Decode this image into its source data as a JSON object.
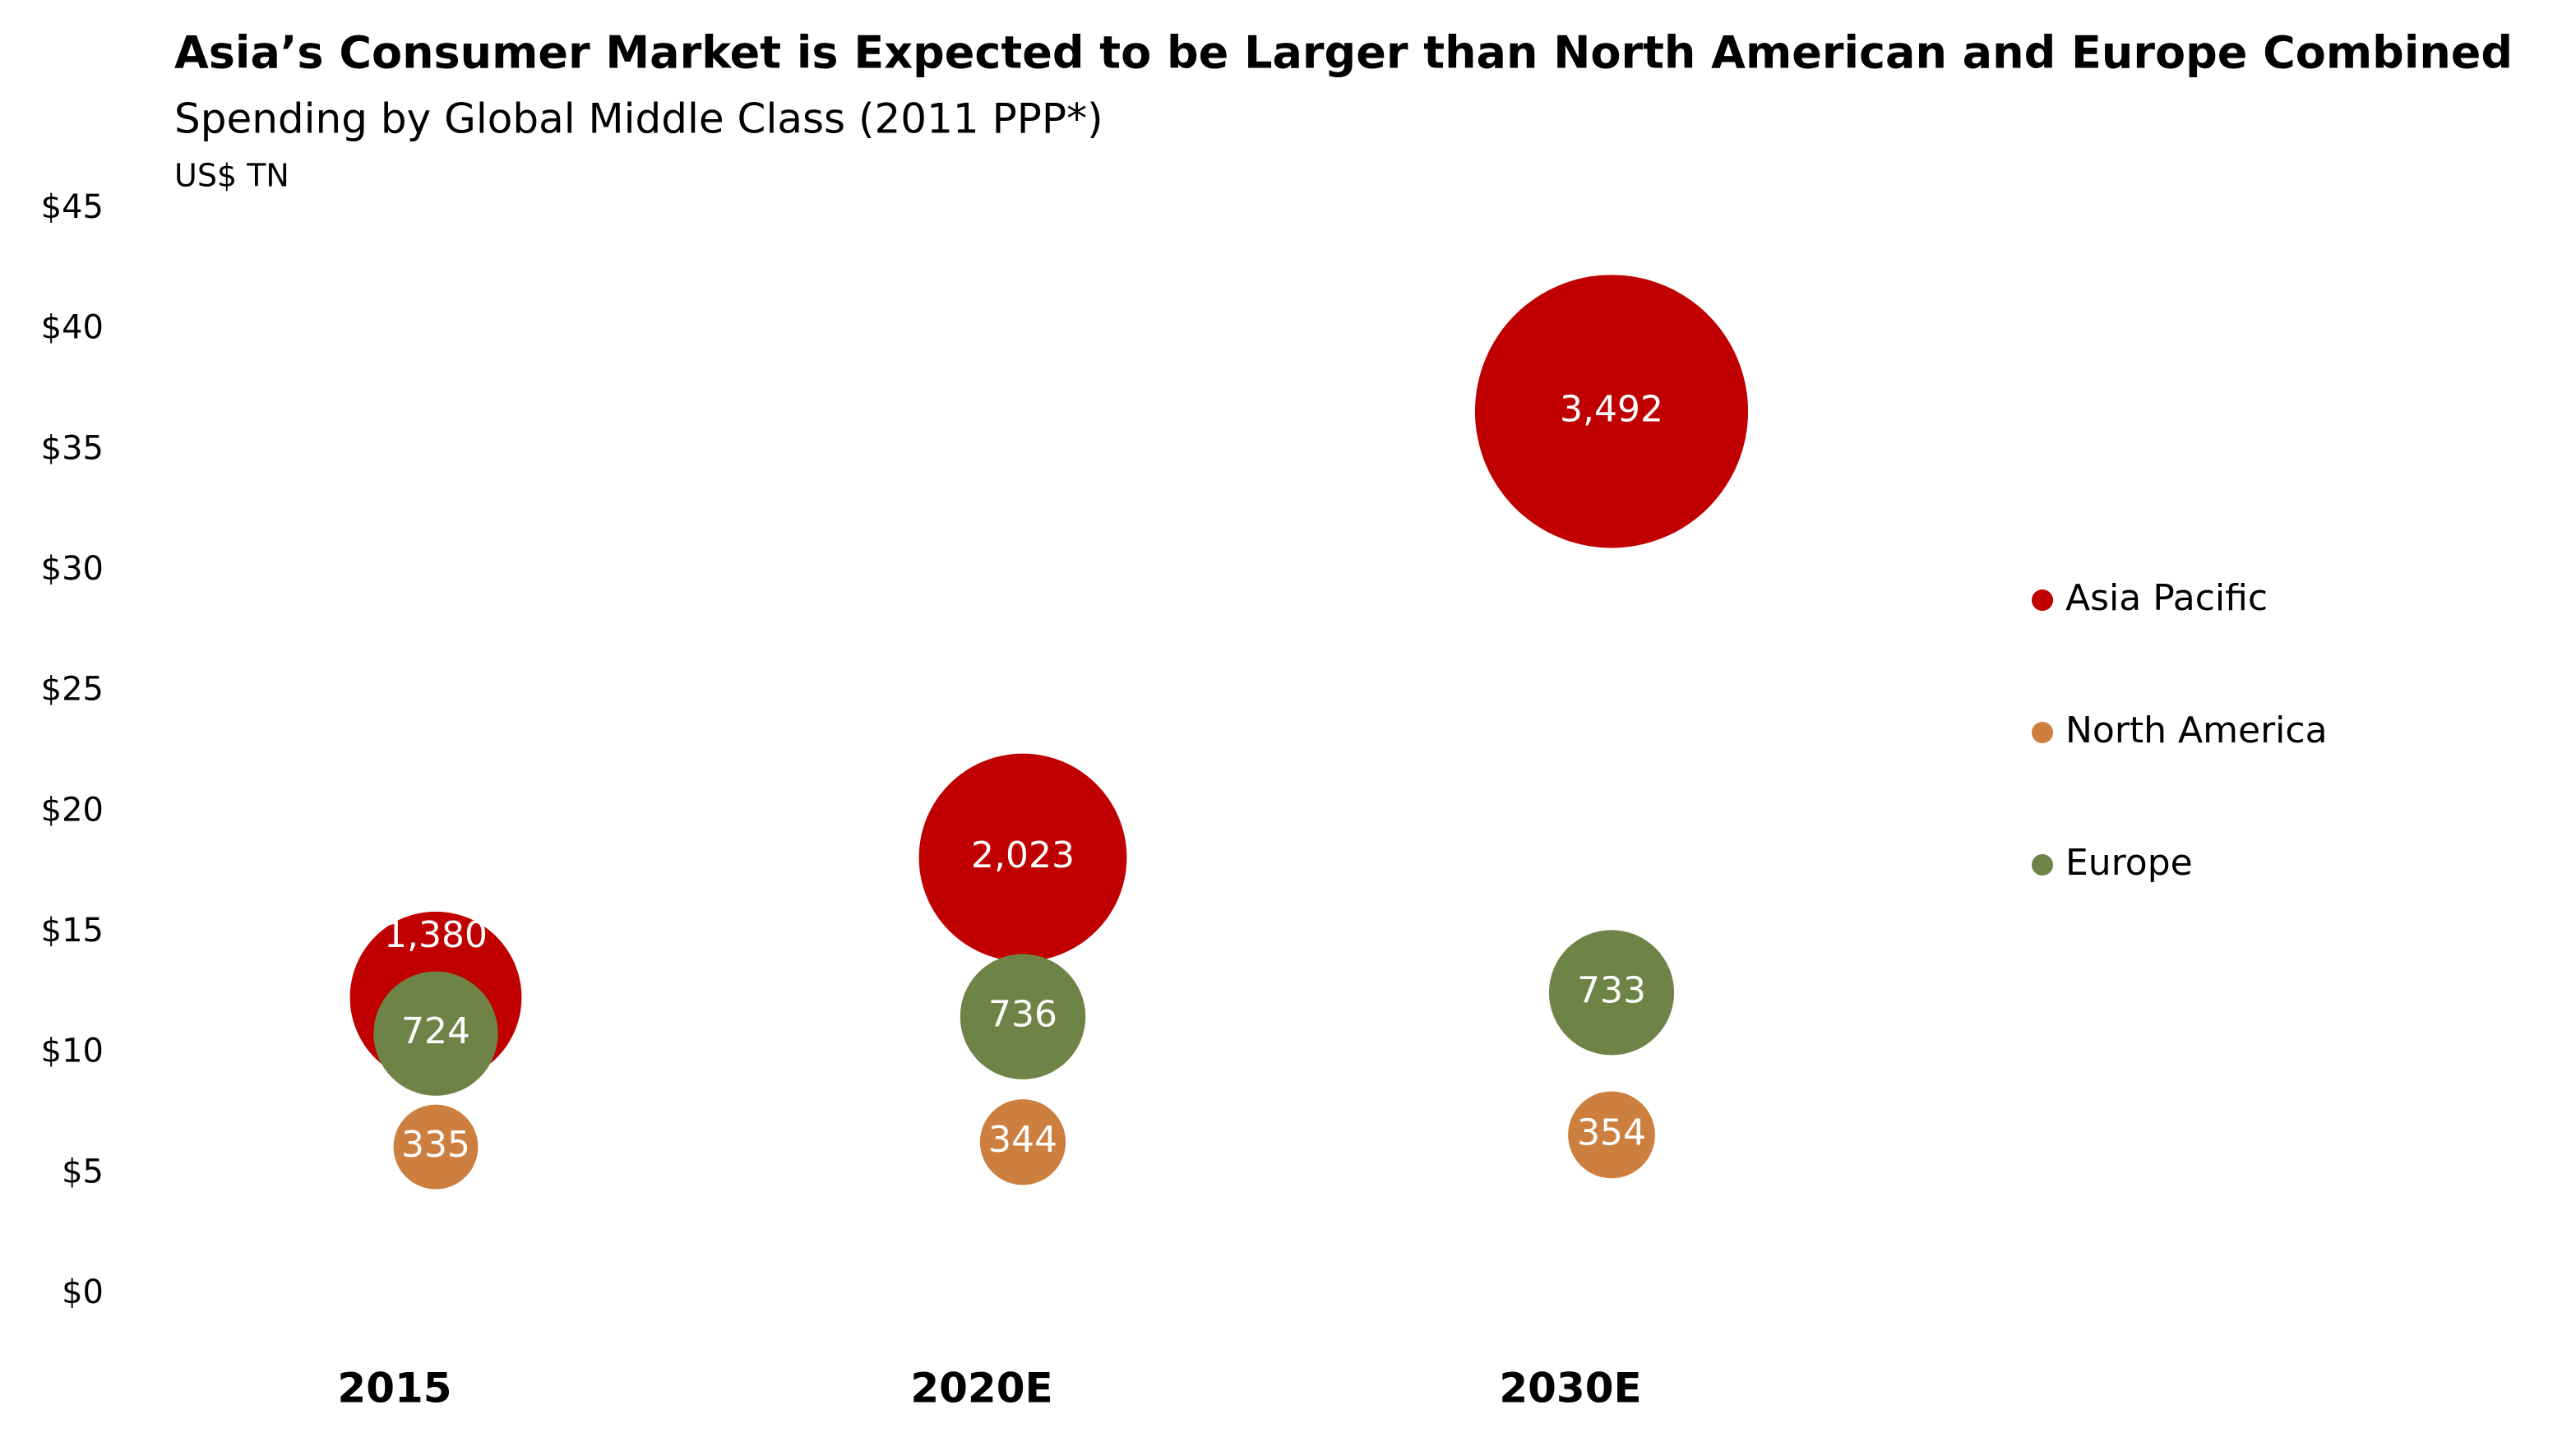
{
  "chart_data": {
    "type": "bubble",
    "title": "Asia’s Consumer Market is Expected to be Larger than North American and Europe Combined",
    "subtitle": "Spending by Global Middle Class (2011 PPP*)",
    "ylabel": "US$ TN",
    "categories": [
      "2015",
      "2020E",
      "2030E"
    ],
    "series": [
      {
        "name": "Asia Pacific",
        "color": "#c00000",
        "values": [
          12.3,
          18.1,
          36.6
        ],
        "sizes": [
          1380,
          2023,
          3492
        ],
        "value_labels": [
          "1,380",
          "2,023",
          "3,492"
        ]
      },
      {
        "name": "North America",
        "color": "#cd7f3f",
        "values": [
          6.1,
          6.3,
          6.6
        ],
        "sizes": [
          335,
          344,
          354
        ],
        "value_labels": [
          "335",
          "344",
          "354"
        ]
      },
      {
        "name": "Europe",
        "color": "#6e8346",
        "values": [
          10.8,
          11.5,
          12.5
        ],
        "sizes": [
          724,
          736,
          733
        ],
        "value_labels": [
          "724",
          "736",
          "733"
        ]
      }
    ],
    "ylim": [
      0,
      45
    ],
    "yticks": [
      {
        "value": 0,
        "label": "$0"
      },
      {
        "value": 5,
        "label": "$5"
      },
      {
        "value": 10,
        "label": "$10"
      },
      {
        "value": 15,
        "label": "$15"
      },
      {
        "value": 20,
        "label": "$20"
      },
      {
        "value": 25,
        "label": "$25"
      },
      {
        "value": 30,
        "label": "$30"
      },
      {
        "value": 35,
        "label": "$35"
      },
      {
        "value": 40,
        "label": "$40"
      },
      {
        "value": 45,
        "label": "$45"
      }
    ],
    "grid": false,
    "legend": "right"
  }
}
